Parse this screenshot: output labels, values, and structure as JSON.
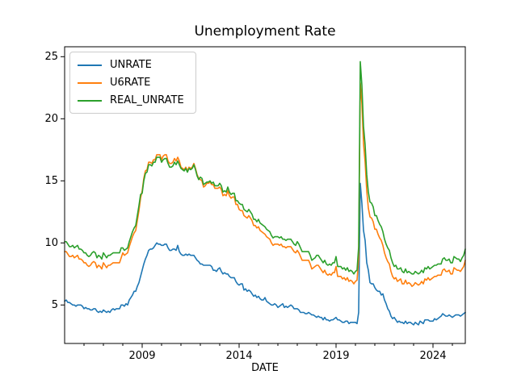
{
  "figure": {
    "background": "#ffffff",
    "text_color": "#000000",
    "spine_color": "#000000"
  },
  "chart_data": {
    "type": "line",
    "title": "Unemployment Rate",
    "xlabel": "DATE",
    "ylabel": "",
    "grid": false,
    "x_start": "2005-01",
    "x_end": "2025-09",
    "x_frequency": "monthly",
    "xlim": [
      2005.0,
      2025.667
    ],
    "ylim": [
      1.9,
      25.8
    ],
    "yticks": [
      5,
      10,
      15,
      20,
      25
    ],
    "xticks_major": [
      2009,
      2014,
      2019,
      2024
    ],
    "xtick_labels": [
      "2009",
      "2014",
      "2019",
      "2024"
    ],
    "xticks_minor": [
      2006,
      2007,
      2008,
      2010,
      2011,
      2012,
      2013,
      2015,
      2016,
      2017,
      2018,
      2020,
      2021,
      2022,
      2023,
      2025
    ],
    "legend": {
      "position": "upper-left",
      "entries": [
        "UNRATE",
        "U6RATE",
        "REAL_UNRATE"
      ]
    },
    "series": [
      {
        "name": "UNRATE",
        "color": "#1f77b4",
        "values": [
          5.3,
          5.4,
          5.2,
          5.2,
          5.1,
          5.0,
          5.0,
          4.9,
          5.0,
          5.0,
          5.0,
          4.9,
          4.7,
          4.8,
          4.7,
          4.7,
          4.6,
          4.6,
          4.7,
          4.7,
          4.5,
          4.4,
          4.5,
          4.4,
          4.6,
          4.5,
          4.4,
          4.5,
          4.4,
          4.6,
          4.7,
          4.6,
          4.7,
          4.7,
          4.7,
          5.0,
          5.0,
          4.9,
          5.1,
          5.0,
          5.4,
          5.6,
          5.8,
          6.1,
          6.1,
          6.5,
          6.8,
          7.3,
          7.8,
          8.3,
          8.7,
          9.0,
          9.4,
          9.5,
          9.5,
          9.6,
          9.8,
          10.0,
          9.9,
          9.9,
          9.8,
          9.8,
          9.9,
          9.9,
          9.6,
          9.4,
          9.4,
          9.5,
          9.5,
          9.4,
          9.8,
          9.3,
          9.1,
          9.0,
          9.0,
          9.1,
          9.0,
          9.1,
          9.0,
          9.0,
          9.0,
          8.8,
          8.6,
          8.5,
          8.3,
          8.3,
          8.2,
          8.2,
          8.2,
          8.2,
          8.2,
          8.1,
          7.8,
          7.8,
          7.7,
          7.9,
          8.0,
          7.7,
          7.5,
          7.6,
          7.5,
          7.5,
          7.3,
          7.2,
          7.2,
          7.2,
          6.9,
          6.7,
          6.6,
          6.7,
          6.7,
          6.2,
          6.3,
          6.1,
          6.2,
          6.1,
          5.9,
          5.7,
          5.8,
          5.6,
          5.7,
          5.5,
          5.4,
          5.4,
          5.6,
          5.3,
          5.2,
          5.1,
          5.0,
          5.0,
          5.1,
          5.0,
          4.8,
          4.9,
          5.0,
          5.1,
          4.8,
          4.9,
          4.8,
          4.9,
          5.0,
          4.9,
          4.7,
          4.7,
          4.7,
          4.6,
          4.4,
          4.4,
          4.4,
          4.3,
          4.3,
          4.4,
          4.3,
          4.2,
          4.2,
          4.1,
          4.0,
          4.1,
          4.0,
          4.0,
          3.8,
          4.0,
          3.8,
          3.8,
          3.7,
          3.8,
          3.8,
          3.9,
          4.0,
          3.8,
          3.8,
          3.7,
          3.6,
          3.6,
          3.7,
          3.7,
          3.5,
          3.6,
          3.6,
          3.6,
          3.6,
          3.5,
          4.4,
          14.8,
          13.2,
          11.0,
          10.2,
          8.4,
          7.8,
          6.8,
          6.7,
          6.7,
          6.4,
          6.2,
          6.1,
          6.1,
          5.8,
          5.9,
          5.4,
          5.1,
          4.7,
          4.5,
          4.1,
          3.9,
          4.0,
          3.8,
          3.6,
          3.7,
          3.6,
          3.6,
          3.5,
          3.7,
          3.5,
          3.6,
          3.6,
          3.5,
          3.4,
          3.6,
          3.5,
          3.4,
          3.7,
          3.6,
          3.5,
          3.8,
          3.8,
          3.8,
          3.7,
          3.7,
          3.7,
          3.9,
          3.8,
          3.9,
          4.0,
          4.1,
          4.3,
          4.2,
          4.1,
          4.1,
          4.2,
          4.1,
          4.0,
          4.1,
          4.2,
          4.2,
          4.2,
          4.1,
          4.2,
          4.3,
          4.4
        ]
      },
      {
        "name": "U6RATE",
        "color": "#ff7f0e",
        "values": [
          9.3,
          9.3,
          9.1,
          8.9,
          8.9,
          9.0,
          8.8,
          8.9,
          9.0,
          8.7,
          8.7,
          8.6,
          8.4,
          8.4,
          8.2,
          8.1,
          8.2,
          8.4,
          8.5,
          8.4,
          8.0,
          8.2,
          8.1,
          7.9,
          8.4,
          8.2,
          8.0,
          8.2,
          8.2,
          8.3,
          8.4,
          8.4,
          8.4,
          8.4,
          8.4,
          8.8,
          9.2,
          9.0,
          9.1,
          9.2,
          9.7,
          10.1,
          10.5,
          10.8,
          11.0,
          11.8,
          12.6,
          13.6,
          14.2,
          15.2,
          15.8,
          15.9,
          16.5,
          16.5,
          16.4,
          16.7,
          16.7,
          17.1,
          17.1,
          17.1,
          16.7,
          17.0,
          17.1,
          17.1,
          16.6,
          16.4,
          16.4,
          16.5,
          16.8,
          16.6,
          16.9,
          16.6,
          16.1,
          16.0,
          15.9,
          16.1,
          15.8,
          16.1,
          16.0,
          16.1,
          16.4,
          16.0,
          15.5,
          15.2,
          15.1,
          15.0,
          14.5,
          14.6,
          14.8,
          14.8,
          14.9,
          14.7,
          14.7,
          14.4,
          14.4,
          14.4,
          14.5,
          14.3,
          13.8,
          13.9,
          13.8,
          14.2,
          13.8,
          13.6,
          13.7,
          13.7,
          13.1,
          13.1,
          12.7,
          12.6,
          12.6,
          12.2,
          12.1,
          12.0,
          12.2,
          12.0,
          11.8,
          11.4,
          11.4,
          11.2,
          11.3,
          11.0,
          10.9,
          10.8,
          10.7,
          10.5,
          10.4,
          10.3,
          10.0,
          9.8,
          9.9,
          9.9,
          9.9,
          9.8,
          9.9,
          9.7,
          9.7,
          9.6,
          9.7,
          9.7,
          9.7,
          9.5,
          9.3,
          9.2,
          9.4,
          9.2,
          8.9,
          8.6,
          8.6,
          8.6,
          8.6,
          8.6,
          8.3,
          7.9,
          8.0,
          8.1,
          8.2,
          8.2,
          8.0,
          7.8,
          7.6,
          7.8,
          7.5,
          7.4,
          7.5,
          7.4,
          7.6,
          7.6,
          8.1,
          7.3,
          7.3,
          7.3,
          7.1,
          7.2,
          7.0,
          7.2,
          6.9,
          7.0,
          6.9,
          6.7,
          6.9,
          7.0,
          8.7,
          22.9,
          21.2,
          18.0,
          16.5,
          14.2,
          12.8,
          12.1,
          12.0,
          11.7,
          11.1,
          11.1,
          10.7,
          10.4,
          10.2,
          9.8,
          9.2,
          8.8,
          8.5,
          8.3,
          7.7,
          7.3,
          7.1,
          7.2,
          6.9,
          7.0,
          7.1,
          6.7,
          6.7,
          7.0,
          6.7,
          6.8,
          6.7,
          6.5,
          6.6,
          6.8,
          6.7,
          6.6,
          6.7,
          6.9,
          6.7,
          7.1,
          7.0,
          7.2,
          7.0,
          7.1,
          7.2,
          7.3,
          7.3,
          7.4,
          7.4,
          7.4,
          7.8,
          7.9,
          7.7,
          7.7,
          7.8,
          7.5,
          7.5,
          8.0,
          7.9,
          7.8,
          7.8,
          7.7,
          7.9,
          8.1,
          8.6
        ]
      },
      {
        "name": "REAL_UNRATE",
        "color": "#2ca02c",
        "values": [
          10.1,
          10.1,
          9.9,
          9.7,
          9.7,
          9.8,
          9.6,
          9.7,
          9.8,
          9.5,
          9.5,
          9.4,
          9.2,
          9.2,
          9.0,
          8.9,
          9.0,
          9.2,
          9.3,
          9.2,
          8.8,
          9.0,
          8.9,
          8.7,
          9.2,
          9.0,
          8.8,
          9.0,
          9.0,
          9.1,
          9.2,
          9.2,
          9.2,
          9.2,
          9.2,
          9.6,
          9.6,
          9.4,
          9.5,
          9.6,
          10.1,
          10.5,
          10.9,
          11.2,
          11.4,
          12.2,
          13.0,
          13.9,
          14.0,
          15.0,
          15.6,
          15.7,
          16.3,
          16.3,
          16.2,
          16.5,
          16.5,
          16.9,
          16.9,
          16.9,
          16.5,
          16.7,
          16.8,
          16.8,
          16.4,
          16.1,
          16.1,
          16.2,
          16.5,
          16.3,
          16.6,
          16.3,
          16.0,
          15.9,
          15.8,
          16.0,
          15.7,
          16.0,
          15.9,
          16.0,
          16.3,
          15.9,
          15.4,
          15.1,
          15.3,
          15.2,
          14.7,
          14.8,
          14.9,
          14.9,
          15.0,
          14.8,
          14.9,
          14.6,
          14.6,
          14.6,
          14.8,
          14.6,
          14.1,
          14.2,
          14.1,
          14.5,
          14.1,
          13.9,
          14.0,
          14.0,
          13.4,
          13.4,
          13.2,
          13.1,
          13.1,
          12.7,
          12.6,
          12.5,
          12.7,
          12.5,
          12.3,
          11.9,
          11.9,
          11.7,
          11.9,
          11.6,
          11.5,
          11.4,
          11.3,
          11.1,
          11.0,
          10.9,
          10.6,
          10.4,
          10.5,
          10.5,
          10.5,
          10.4,
          10.5,
          10.3,
          10.3,
          10.2,
          10.3,
          10.3,
          10.3,
          10.1,
          9.9,
          9.8,
          10.1,
          9.9,
          9.6,
          9.3,
          9.3,
          9.3,
          9.3,
          9.3,
          9.0,
          8.6,
          8.7,
          8.8,
          9.0,
          9.0,
          8.8,
          8.6,
          8.4,
          8.6,
          8.3,
          8.2,
          8.3,
          8.2,
          8.4,
          8.4,
          8.9,
          8.1,
          8.1,
          8.1,
          7.9,
          8.0,
          7.8,
          8.0,
          7.7,
          7.8,
          7.7,
          7.5,
          7.7,
          7.8,
          9.7,
          24.6,
          22.7,
          19.4,
          17.9,
          15.5,
          14.1,
          13.3,
          13.2,
          12.9,
          12.2,
          12.2,
          11.8,
          11.5,
          11.3,
          10.9,
          10.3,
          9.9,
          9.6,
          9.4,
          8.8,
          8.4,
          8.1,
          8.2,
          7.9,
          7.9,
          8.0,
          7.7,
          7.6,
          7.9,
          7.6,
          7.7,
          7.6,
          7.5,
          7.5,
          7.7,
          7.6,
          7.5,
          7.6,
          7.8,
          7.6,
          8.0,
          7.9,
          8.1,
          7.9,
          8.0,
          8.1,
          8.2,
          8.2,
          8.3,
          8.3,
          8.3,
          8.7,
          8.8,
          8.6,
          8.6,
          8.7,
          8.4,
          8.4,
          8.9,
          8.8,
          8.7,
          8.7,
          8.5,
          8.8,
          9.0,
          9.5
        ]
      }
    ]
  }
}
